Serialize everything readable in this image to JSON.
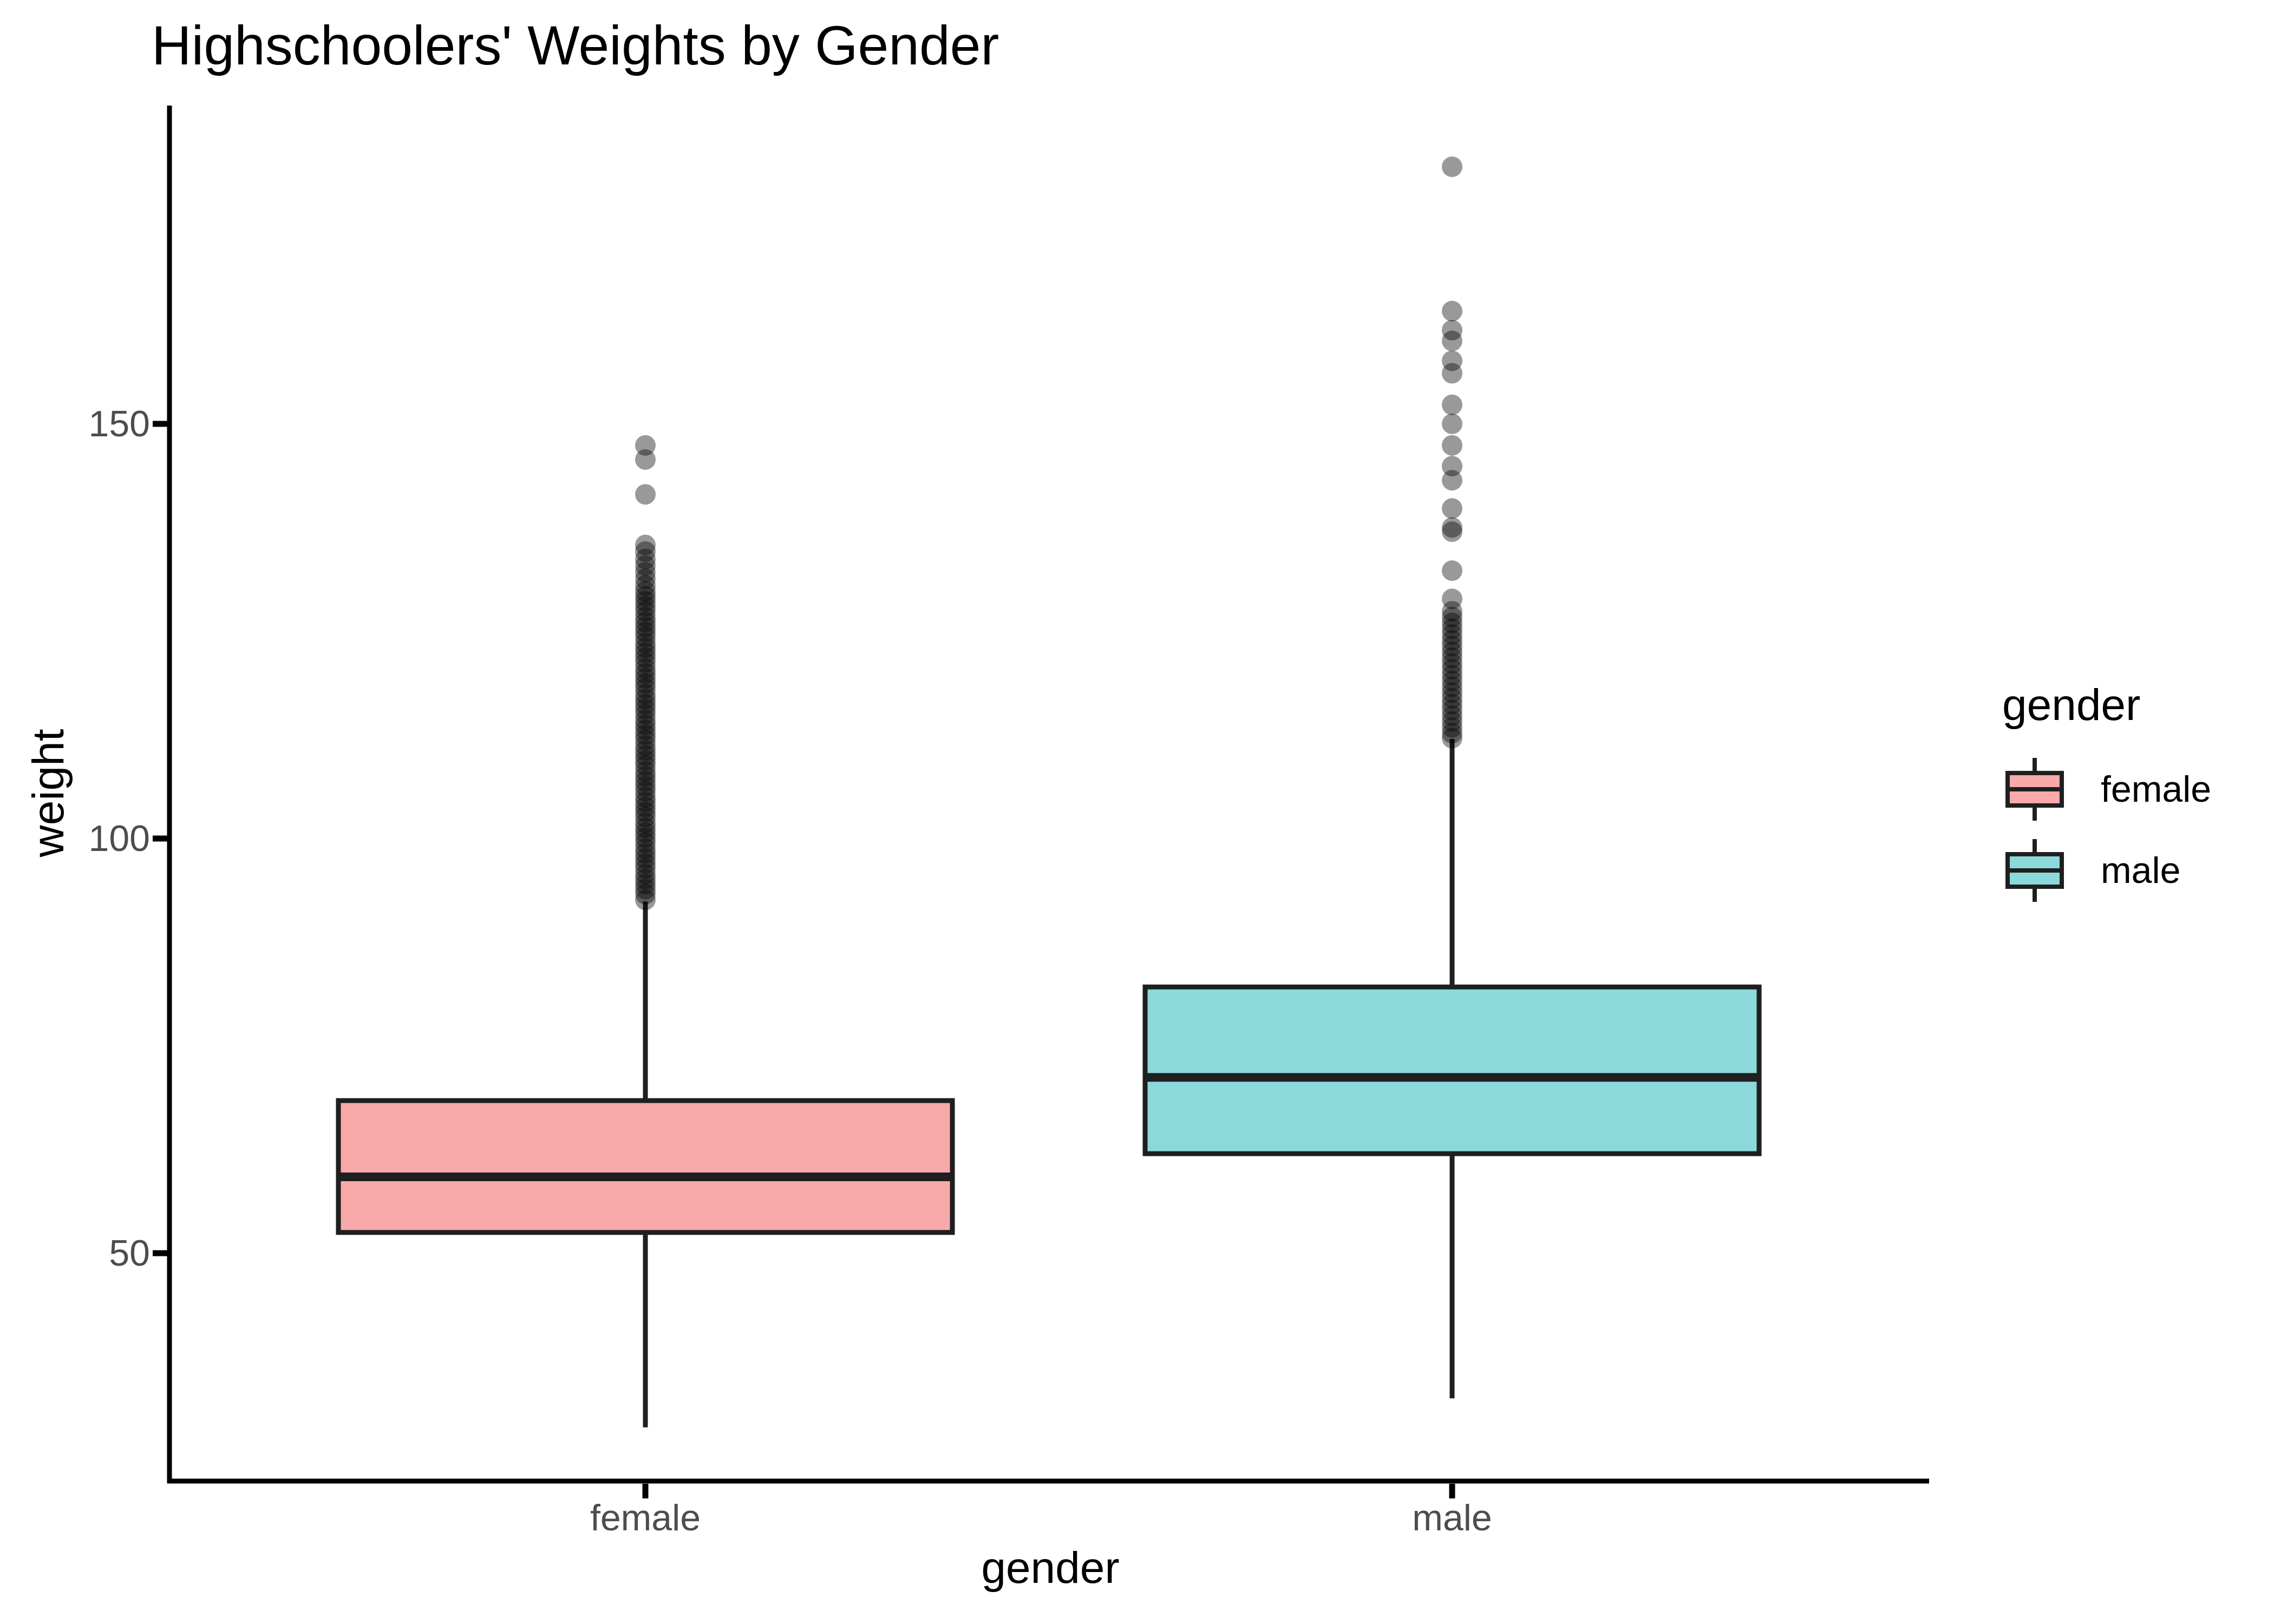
{
  "chart_data": {
    "type": "boxplot",
    "title": "Highschoolers' Weights by Gender",
    "xlabel": "gender",
    "ylabel": "weight",
    "categories": [
      "female",
      "male"
    ],
    "y_axis": {
      "ticks": [
        150,
        100,
        50
      ],
      "range": [
        22.5,
        188.5
      ],
      "grid": false
    },
    "x_axis": {
      "tick_labels": [
        "female",
        "male"
      ]
    },
    "legend": {
      "title": "gender",
      "position": "right",
      "entries": [
        {
          "label": "female",
          "color": "#F8A9A9"
        },
        {
          "label": "male",
          "color": "#8BD9DB"
        }
      ]
    },
    "style": {
      "outline_color": "#1F1F1F",
      "axis_color": "#000000",
      "tick_label_color": "#4D4D4D",
      "outlier_color": "#000000",
      "outlier_opacity": 0.4,
      "background": "#FFFFFF"
    },
    "series": [
      {
        "name": "female",
        "color": "#F8A9A9",
        "box": {
          "lower_whisker": 29.0,
          "q1": 52.5,
          "median": 59.2,
          "q3": 68.4,
          "upper_whisker": 92.4
        },
        "outliers": [
          147.4,
          145.7,
          141.5,
          135.4,
          134.6,
          133.7,
          132.9,
          132.1,
          131.3,
          130.5,
          129.8,
          129.2,
          128.6,
          128.0,
          127.4,
          126.7,
          126.1,
          125.5,
          124.9,
          124.3,
          123.6,
          123.0,
          122.4,
          121.8,
          121.2,
          120.5,
          119.9,
          119.3,
          118.7,
          118.1,
          117.4,
          116.8,
          116.2,
          115.6,
          115.0,
          114.3,
          113.7,
          113.1,
          112.5,
          111.9,
          111.2,
          110.6,
          110.0,
          109.4,
          108.8,
          108.1,
          107.5,
          106.9,
          106.3,
          105.7,
          105.0,
          104.4,
          103.8,
          103.2,
          102.6,
          101.9,
          101.3,
          100.7,
          100.1,
          99.5,
          98.8,
          98.2,
          97.6,
          97.0,
          96.4,
          95.7,
          95.1,
          94.5,
          93.9,
          93.3,
          92.6
        ]
      },
      {
        "name": "male",
        "color": "#8BD9DB",
        "box": {
          "lower_whisker": 32.5,
          "q1": 62.0,
          "median": 71.2,
          "q3": 82.1,
          "upper_whisker": 112.0
        },
        "outliers": [
          181.0,
          163.6,
          161.3,
          160.0,
          157.6,
          156.1,
          152.3,
          150.0,
          147.4,
          144.9,
          143.2,
          139.8,
          137.5,
          137.0,
          132.3,
          128.9,
          127.4,
          126.7,
          126.0,
          125.3,
          124.6,
          123.9,
          123.2,
          122.5,
          121.8,
          121.1,
          120.4,
          119.7,
          119.0,
          118.3,
          117.6,
          116.9,
          116.2,
          115.5,
          114.8,
          114.1,
          113.4,
          112.7,
          112.1
        ]
      }
    ]
  }
}
